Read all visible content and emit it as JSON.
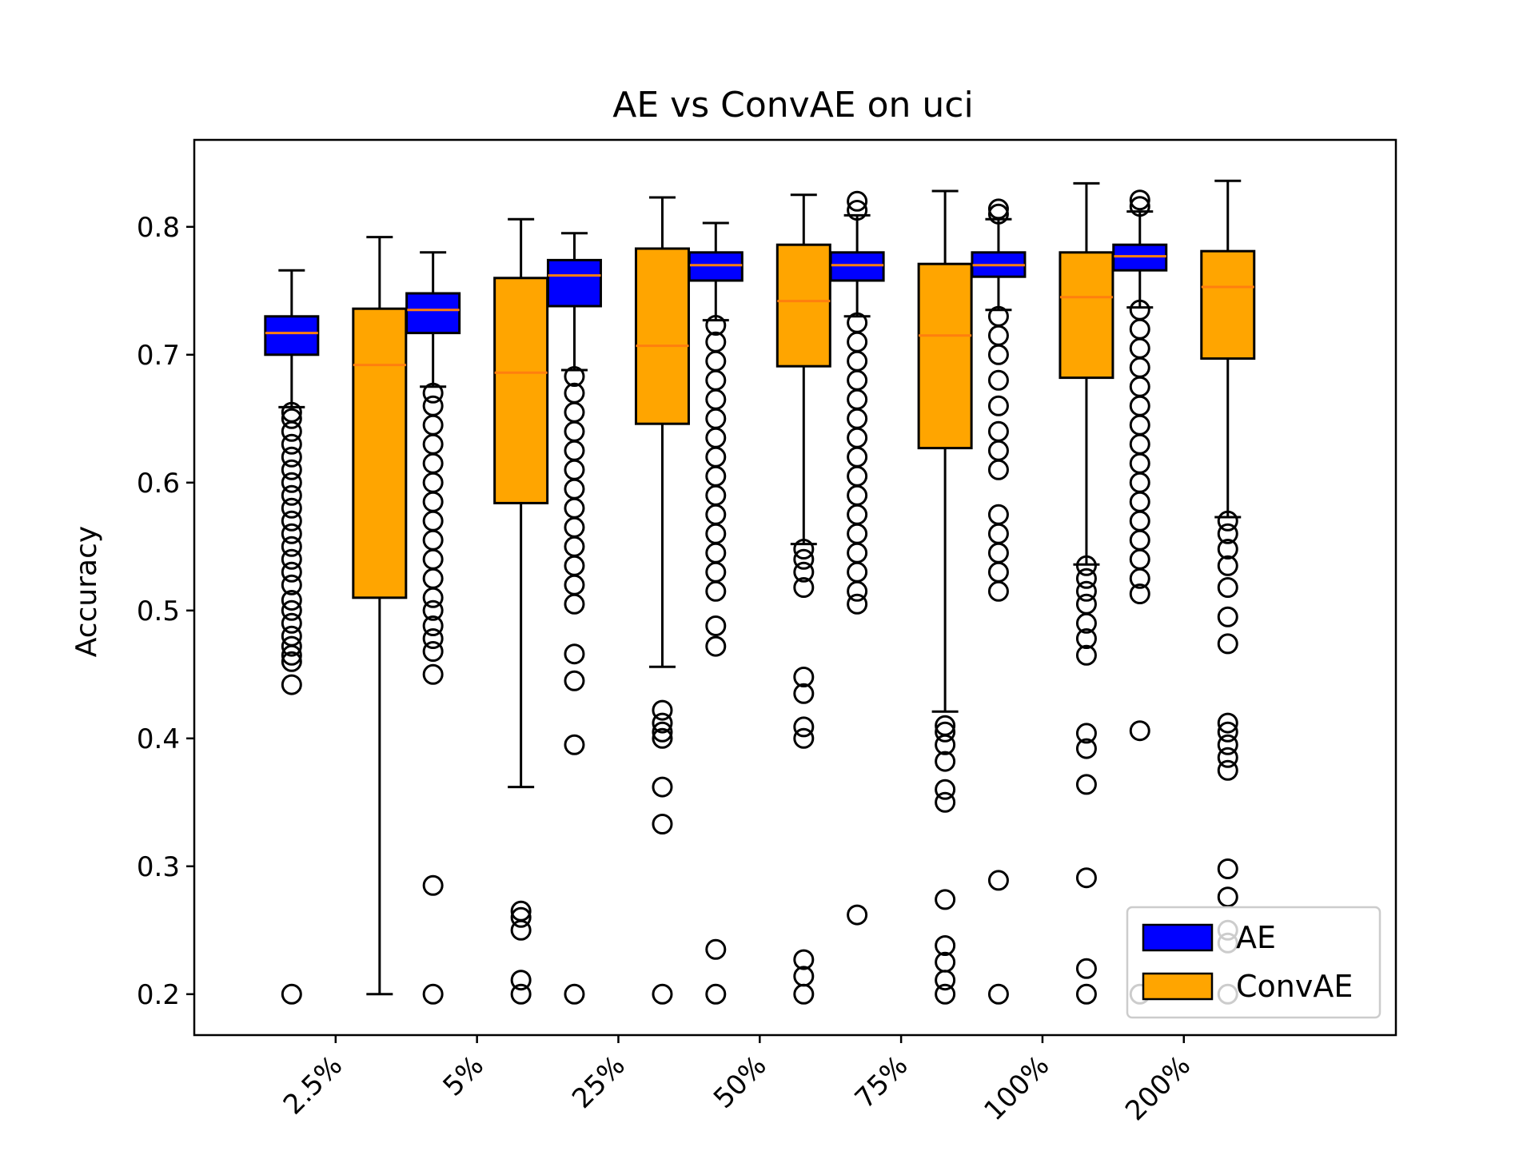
{
  "chart_data": {
    "type": "box",
    "title": "AE vs ConvAE on uci",
    "xlabel": "",
    "ylabel": "Accuracy",
    "categories": [
      "2.5%",
      "5%",
      "25%",
      "50%",
      "75%",
      "100%",
      "200%"
    ],
    "ylim": [
      0.168,
      0.868
    ],
    "yticks": [
      0.2,
      0.3,
      0.4,
      0.5,
      0.6,
      0.7,
      0.8
    ],
    "ytick_labels": [
      "0.2",
      "0.3",
      "0.4",
      "0.5",
      "0.6",
      "0.7",
      "0.8"
    ],
    "grid": false,
    "legend": {
      "position": "lower-right"
    },
    "series": [
      {
        "name": "AE",
        "color": "#0000ff",
        "median_color": "#ff7f0e",
        "boxes": [
          {
            "whislo": 0.659,
            "q1": 0.7,
            "med": 0.717,
            "q3": 0.73,
            "whishi": 0.766,
            "fliers": [
              0.2,
              0.442,
              0.46,
              0.465,
              0.472,
              0.48,
              0.49,
              0.5,
              0.508,
              0.52,
              0.53,
              0.54,
              0.55,
              0.56,
              0.57,
              0.58,
              0.59,
              0.6,
              0.61,
              0.62,
              0.63,
              0.64,
              0.65,
              0.655
            ]
          },
          {
            "whislo": 0.675,
            "q1": 0.717,
            "med": 0.735,
            "q3": 0.748,
            "whishi": 0.78,
            "fliers": [
              0.2,
              0.285,
              0.45,
              0.468,
              0.478,
              0.488,
              0.5,
              0.51,
              0.525,
              0.54,
              0.555,
              0.57,
              0.585,
              0.6,
              0.615,
              0.63,
              0.645,
              0.66,
              0.67
            ]
          },
          {
            "whislo": 0.688,
            "q1": 0.738,
            "med": 0.762,
            "q3": 0.774,
            "whishi": 0.795,
            "fliers": [
              0.2,
              0.395,
              0.445,
              0.466,
              0.505,
              0.52,
              0.535,
              0.55,
              0.565,
              0.58,
              0.595,
              0.61,
              0.625,
              0.64,
              0.655,
              0.67,
              0.683
            ]
          },
          {
            "whislo": 0.727,
            "q1": 0.758,
            "med": 0.77,
            "q3": 0.78,
            "whishi": 0.803,
            "fliers": [
              0.2,
              0.235,
              0.472,
              0.488,
              0.515,
              0.53,
              0.545,
              0.56,
              0.575,
              0.59,
              0.605,
              0.62,
              0.635,
              0.65,
              0.665,
              0.68,
              0.695,
              0.71,
              0.723
            ]
          },
          {
            "whislo": 0.73,
            "q1": 0.758,
            "med": 0.77,
            "q3": 0.78,
            "whishi": 0.809,
            "fliers": [
              0.262,
              0.505,
              0.515,
              0.53,
              0.545,
              0.56,
              0.575,
              0.59,
              0.605,
              0.62,
              0.635,
              0.65,
              0.665,
              0.68,
              0.695,
              0.71,
              0.725,
              0.813,
              0.82
            ]
          },
          {
            "whislo": 0.735,
            "q1": 0.761,
            "med": 0.77,
            "q3": 0.78,
            "whishi": 0.806,
            "fliers": [
              0.2,
              0.289,
              0.515,
              0.53,
              0.545,
              0.56,
              0.575,
              0.61,
              0.625,
              0.64,
              0.66,
              0.68,
              0.7,
              0.715,
              0.73,
              0.81,
              0.814
            ]
          },
          {
            "whislo": 0.737,
            "q1": 0.766,
            "med": 0.777,
            "q3": 0.786,
            "whishi": 0.812,
            "fliers": [
              0.2,
              0.406,
              0.513,
              0.525,
              0.54,
              0.555,
              0.57,
              0.585,
              0.6,
              0.615,
              0.63,
              0.645,
              0.66,
              0.675,
              0.69,
              0.705,
              0.72,
              0.735,
              0.816,
              0.821
            ]
          }
        ]
      },
      {
        "name": "ConvAE",
        "color": "#ffa500",
        "median_color": "#ff7f0e",
        "boxes": [
          {
            "whislo": 0.2,
            "q1": 0.51,
            "med": 0.692,
            "q3": 0.736,
            "whishi": 0.792,
            "fliers": []
          },
          {
            "whislo": 0.362,
            "q1": 0.584,
            "med": 0.686,
            "q3": 0.76,
            "whishi": 0.806,
            "fliers": [
              0.2,
              0.211,
              0.25,
              0.26,
              0.265
            ]
          },
          {
            "whislo": 0.456,
            "q1": 0.646,
            "med": 0.707,
            "q3": 0.783,
            "whishi": 0.823,
            "fliers": [
              0.2,
              0.333,
              0.362,
              0.4,
              0.405,
              0.412,
              0.422
            ]
          },
          {
            "whislo": 0.552,
            "q1": 0.691,
            "med": 0.742,
            "q3": 0.786,
            "whishi": 0.825,
            "fliers": [
              0.2,
              0.214,
              0.227,
              0.4,
              0.409,
              0.435,
              0.448,
              0.518,
              0.53,
              0.54,
              0.548
            ]
          },
          {
            "whislo": 0.421,
            "q1": 0.627,
            "med": 0.715,
            "q3": 0.771,
            "whishi": 0.828,
            "fliers": [
              0.2,
              0.211,
              0.225,
              0.238,
              0.274,
              0.35,
              0.36,
              0.382,
              0.395,
              0.405,
              0.41
            ]
          },
          {
            "whislo": 0.536,
            "q1": 0.682,
            "med": 0.745,
            "q3": 0.78,
            "whishi": 0.834,
            "fliers": [
              0.2,
              0.22,
              0.291,
              0.364,
              0.392,
              0.404,
              0.465,
              0.478,
              0.49,
              0.505,
              0.515,
              0.525,
              0.535
            ]
          },
          {
            "whislo": 0.573,
            "q1": 0.697,
            "med": 0.753,
            "q3": 0.781,
            "whishi": 0.836,
            "fliers": [
              0.2,
              0.24,
              0.25,
              0.276,
              0.298,
              0.375,
              0.385,
              0.395,
              0.405,
              0.412,
              0.474,
              0.495,
              0.518,
              0.535,
              0.548,
              0.56,
              0.57
            ]
          }
        ]
      }
    ]
  }
}
